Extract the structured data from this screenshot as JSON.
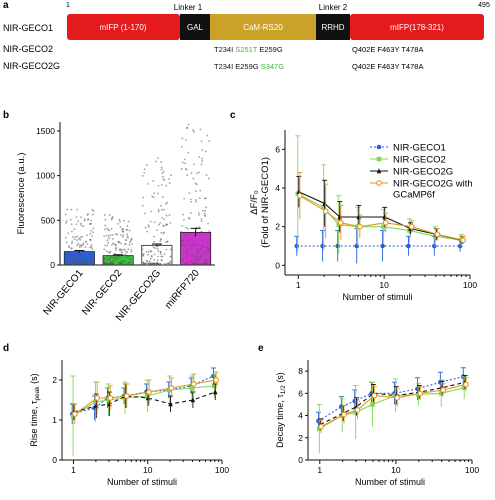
{
  "panel_a": {
    "letter": "a",
    "start_num": "1",
    "end_num": "495",
    "domains": [
      {
        "label": "mIFP (1-170)",
        "color": "#e41a1c",
        "text_color": "#ffffff"
      },
      {
        "label": "GAL",
        "color": "#111111",
        "text_color": "#ffffff"
      },
      {
        "label": "CaM-RS20",
        "color": "#c9a227",
        "text_color": "#ffffff"
      },
      {
        "label": "RRHD",
        "color": "#111111",
        "text_color": "#ffffff"
      },
      {
        "label": "mIFP(178-321)",
        "color": "#e41a1c",
        "text_color": "#ffffff"
      }
    ],
    "linker1": "Linker 1",
    "linker2": "Linker 2",
    "constructs": [
      {
        "name": "NIR-GECO1",
        "mid": [],
        "right": ""
      },
      {
        "name": "NIR-GECO2",
        "mid": [
          {
            "t": "T234I ",
            "c": "#111111"
          },
          {
            "t": "S251T",
            "c": "#4daf4a"
          },
          {
            "t": " E259G",
            "c": "#111111"
          }
        ],
        "right": "Q402E F463Y T478A"
      },
      {
        "name": "NIR-GECO2G",
        "mid": [
          {
            "t": "T234I E259G ",
            "c": "#111111"
          },
          {
            "t": "S347G",
            "c": "#4daf4a"
          }
        ],
        "right": "Q402E F463Y T478A"
      }
    ]
  },
  "chart_data": [
    {
      "panel": "b",
      "type": "bar",
      "ylabel": "Fluorescence  (a.u.)",
      "ylim": [
        0,
        1600
      ],
      "yticks": [
        0,
        500,
        1000,
        1500
      ],
      "categories": [
        "NIR-GECO1",
        "NIR-GECO2",
        "NIR-GECO2G",
        "miRFP720"
      ],
      "values": [
        150,
        105,
        220,
        365
      ],
      "errors": [
        12,
        10,
        15,
        45
      ],
      "colors": [
        "#2b5fd9",
        "#3fbf3f",
        "#ffffff",
        "#cc33cc"
      ],
      "scatter_max": [
        620,
        560,
        1200,
        1600
      ],
      "grid": false
    },
    {
      "panel": "c",
      "type": "line",
      "xscale": "log",
      "xlabel": "Number of stimuli",
      "ylabel": "ΔF/F₀",
      "ylabel2": "(Fold of NIR-GECO1)",
      "xlim": [
        0.7,
        100
      ],
      "ylim": [
        -0.5,
        7
      ],
      "yticks": [
        0,
        2,
        4,
        6
      ],
      "xticks": [
        1,
        10,
        100
      ],
      "legend_position": "top-right",
      "x": [
        1,
        2,
        3,
        5,
        10,
        20,
        40,
        80
      ],
      "series": [
        {
          "name": "NIR-GECO1",
          "color": "#2b5fd9",
          "marker": "circle",
          "dash": "2,2",
          "values": [
            1.0,
            1.0,
            1.0,
            1.0,
            1.0,
            1.0,
            1.0,
            1.0
          ],
          "errors": [
            0.5,
            0.8,
            0.8,
            0.9,
            0.8,
            0.5,
            0.5,
            0.3
          ]
        },
        {
          "name": "NIR-GECO2",
          "color": "#7ed957",
          "marker": "square",
          "dash": "",
          "values": [
            3.7,
            3.0,
            2.1,
            2.0,
            2.0,
            1.8,
            1.5,
            1.3
          ],
          "errors": [
            3.0,
            2.2,
            1.5,
            1.0,
            0.9,
            0.6,
            0.5,
            0.3
          ]
        },
        {
          "name": "NIR-GECO2G",
          "color": "#111111",
          "marker": "triangle",
          "dash": "",
          "values": [
            3.8,
            3.2,
            2.5,
            2.5,
            2.5,
            1.9,
            1.6,
            1.3
          ],
          "errors": [
            0.8,
            1.2,
            0.8,
            0.6,
            0.5,
            0.3,
            0.3,
            0.2
          ]
        },
        {
          "name": "NIR-GECO2G with",
          "name2": "GCaMP6f",
          "color": "#e69522",
          "marker": "open-circle",
          "dash": "",
          "values": [
            3.6,
            2.8,
            2.2,
            2.0,
            2.2,
            2.0,
            1.6,
            1.3
          ],
          "errors": [
            1.2,
            1.4,
            0.9,
            0.6,
            0.5,
            0.3,
            0.3,
            0.2
          ]
        }
      ]
    },
    {
      "panel": "d",
      "type": "line",
      "xscale": "log",
      "xlabel": "Number of stimuli",
      "ylabel": "Rise time, τ",
      "ylabel_sub": "peak",
      "ylabel_unit": " (s)",
      "xlim": [
        0.7,
        100
      ],
      "ylim": [
        0,
        2.5
      ],
      "yticks": [
        0,
        1,
        2
      ],
      "xticks": [
        1,
        10,
        100
      ],
      "x": [
        1,
        2,
        3,
        5,
        10,
        20,
        40,
        80
      ],
      "series": [
        {
          "name": "NIR-GECO1",
          "color": "#2b5fd9",
          "marker": "circle",
          "dash": "2,2",
          "values": [
            1.15,
            1.3,
            1.55,
            1.6,
            1.7,
            1.75,
            1.85,
            2.1
          ],
          "errors": [
            0.25,
            0.3,
            0.25,
            0.2,
            0.2,
            0.2,
            0.2,
            0.2
          ]
        },
        {
          "name": "NIR-GECO2",
          "color": "#7ed957",
          "marker": "square",
          "dash": "",
          "values": [
            1.1,
            1.45,
            1.5,
            1.55,
            1.6,
            1.75,
            1.8,
            1.85
          ],
          "errors": [
            1.0,
            0.5,
            0.4,
            0.4,
            0.4,
            0.35,
            0.3,
            0.3
          ]
        },
        {
          "name": "NIR-GECO2G",
          "color": "#111111",
          "marker": "triangle",
          "dash": "4,3",
          "values": [
            1.2,
            1.35,
            1.4,
            1.6,
            1.55,
            1.4,
            1.5,
            1.7
          ],
          "errors": [
            0.2,
            0.3,
            0.3,
            0.3,
            0.2,
            0.2,
            0.2,
            0.2
          ]
        },
        {
          "name": "NIR-GECO2G with GCaMP6f",
          "color": "#e69522",
          "marker": "open-circle",
          "dash": "",
          "values": [
            1.15,
            1.55,
            1.55,
            1.6,
            1.7,
            1.8,
            1.9,
            2.0
          ],
          "errors": [
            0.25,
            0.4,
            0.3,
            0.3,
            0.3,
            0.25,
            0.25,
            0.2
          ]
        }
      ]
    },
    {
      "panel": "e",
      "type": "line",
      "xscale": "log",
      "xlabel": "Number of stimuli",
      "ylabel": "Decay time, τ",
      "ylabel_sub": "1/2",
      "ylabel_unit": " (s)",
      "xlim": [
        0.7,
        100
      ],
      "ylim": [
        0,
        9
      ],
      "yticks": [
        0,
        2,
        4,
        6,
        8
      ],
      "xticks": [
        1,
        10,
        100
      ],
      "x": [
        1,
        2,
        3,
        5,
        10,
        20,
        40,
        80
      ],
      "series": [
        {
          "name": "NIR-GECO1",
          "color": "#2b5fd9",
          "marker": "circle",
          "dash": "2,2",
          "values": [
            3.5,
            4.8,
            5.3,
            6.0,
            6.0,
            6.4,
            7.0,
            7.5
          ],
          "errors": [
            0.8,
            0.9,
            1.0,
            1.0,
            1.0,
            1.0,
            0.9,
            0.8
          ]
        },
        {
          "name": "NIR-GECO2",
          "color": "#7ed957",
          "marker": "square",
          "dash": "",
          "values": [
            2.8,
            4.0,
            4.3,
            5.0,
            5.8,
            5.9,
            6.0,
            6.5
          ],
          "errors": [
            2.2,
            1.5,
            2.4,
            2.0,
            1.5,
            1.0,
            1.2,
            1.0
          ]
        },
        {
          "name": "NIR-GECO2G",
          "color": "#111111",
          "marker": "triangle",
          "dash": "4,3",
          "values": [
            3.2,
            4.2,
            4.8,
            6.0,
            5.8,
            6.1,
            6.5,
            7.0
          ],
          "errors": [
            0.5,
            0.7,
            0.8,
            0.8,
            0.8,
            0.6,
            0.6,
            0.6
          ]
        },
        {
          "name": "NIR-GECO2G with GCaMP6f",
          "color": "#e69522",
          "marker": "open-circle",
          "dash": "",
          "values": [
            3.0,
            4.1,
            4.5,
            5.8,
            5.6,
            6.0,
            6.3,
            6.8
          ],
          "errors": [
            0.6,
            0.8,
            0.8,
            0.8,
            0.8,
            0.6,
            0.6,
            0.6
          ]
        }
      ]
    }
  ]
}
